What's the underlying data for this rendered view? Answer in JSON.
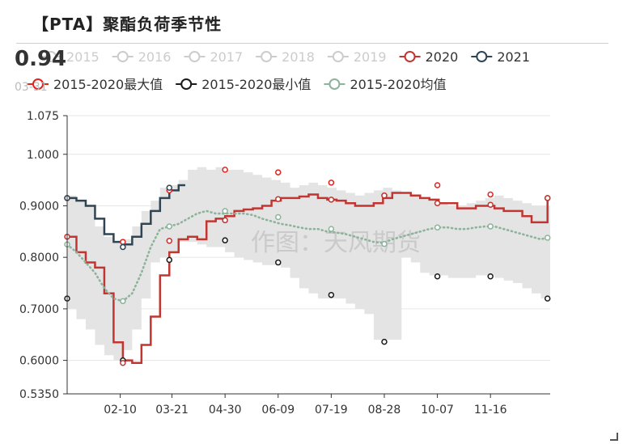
{
  "title": "【PTA】聚酯负荷季节性",
  "tooltip": {
    "value": "0.94",
    "date": "03-31"
  },
  "watermark": "作图：天风期货",
  "chart_data": {
    "type": "line",
    "title": "【PTA】聚酯负荷季节性",
    "xlabel": "",
    "ylabel": "",
    "ylim": [
      0.535,
      1.075
    ],
    "y_ticks": [
      "1.075",
      "1.000",
      "0.9000",
      "0.8000",
      "0.7000",
      "0.6000",
      "0.5350"
    ],
    "y_tick_values": [
      1.075,
      1.0,
      0.9,
      0.8,
      0.7,
      0.6,
      0.535
    ],
    "x_tick_labels": [
      "02-10",
      "03-21",
      "04-30",
      "06-09",
      "07-19",
      "08-28",
      "10-07",
      "11-16"
    ],
    "x_tick_days": [
      41,
      80,
      120,
      160,
      200,
      240,
      280,
      320
    ],
    "x_range_days": [
      1,
      365
    ],
    "grid": true,
    "legend": {
      "placement": "top",
      "items": [
        {
          "name": "2015",
          "color": "#cccccc",
          "active": false
        },
        {
          "name": "2016",
          "color": "#cccccc",
          "active": false
        },
        {
          "name": "2017",
          "color": "#cccccc",
          "active": false
        },
        {
          "name": "2018",
          "color": "#cccccc",
          "active": false
        },
        {
          "name": "2019",
          "color": "#cccccc",
          "active": false
        },
        {
          "name": "2020",
          "color": "#c23531",
          "active": true
        },
        {
          "name": "2021",
          "color": "#2f4554",
          "active": true
        },
        {
          "name": "2015-2020最大值",
          "color": "#e3231e",
          "active": true
        },
        {
          "name": "2015-2020最小值",
          "color": "#1a1a1a",
          "active": true
        },
        {
          "name": "2015-2020均值",
          "color": "#8cb39b",
          "active": true
        }
      ]
    },
    "band": {
      "days": [
        1,
        8,
        15,
        22,
        29,
        36,
        43,
        50,
        57,
        64,
        71,
        78,
        85,
        92,
        99,
        106,
        113,
        120,
        127,
        134,
        141,
        148,
        155,
        162,
        169,
        176,
        183,
        190,
        197,
        204,
        211,
        218,
        225,
        232,
        239,
        246,
        253,
        260,
        267,
        274,
        281,
        288,
        295,
        302,
        309,
        316,
        323,
        330,
        337,
        344,
        351,
        358,
        365
      ],
      "upper": [
        0.92,
        0.91,
        0.9,
        0.86,
        0.84,
        0.83,
        0.835,
        0.86,
        0.89,
        0.91,
        0.935,
        0.94,
        0.95,
        0.97,
        0.975,
        0.97,
        0.975,
        0.97,
        0.97,
        0.965,
        0.96,
        0.955,
        0.95,
        0.945,
        0.935,
        0.94,
        0.945,
        0.94,
        0.935,
        0.93,
        0.925,
        0.92,
        0.925,
        0.93,
        0.935,
        0.93,
        0.925,
        0.92,
        0.915,
        0.91,
        0.905,
        0.9,
        0.9,
        0.905,
        0.91,
        0.915,
        0.92,
        0.915,
        0.91,
        0.905,
        0.9,
        0.9,
        0.915
      ],
      "lower": [
        0.72,
        0.7,
        0.68,
        0.66,
        0.63,
        0.61,
        0.6,
        0.62,
        0.66,
        0.72,
        0.79,
        0.8,
        0.81,
        0.83,
        0.83,
        0.825,
        0.82,
        0.82,
        0.81,
        0.8,
        0.795,
        0.79,
        0.785,
        0.785,
        0.78,
        0.76,
        0.74,
        0.73,
        0.72,
        0.72,
        0.72,
        0.71,
        0.7,
        0.69,
        0.64,
        0.64,
        0.64,
        0.8,
        0.79,
        0.77,
        0.765,
        0.765,
        0.76,
        0.76,
        0.76,
        0.765,
        0.765,
        0.76,
        0.755,
        0.75,
        0.74,
        0.73,
        0.72
      ]
    },
    "series": [
      {
        "name": "2020",
        "color": "#c23531",
        "step": true,
        "days": [
          1,
          8,
          15,
          22,
          29,
          36,
          43,
          50,
          57,
          64,
          71,
          78,
          85,
          92,
          99,
          106,
          113,
          120,
          127,
          134,
          141,
          148,
          155,
          162,
          169,
          176,
          183,
          190,
          197,
          204,
          211,
          218,
          225,
          232,
          239,
          246,
          253,
          260,
          267,
          274,
          281,
          288,
          295,
          302,
          309,
          316,
          323,
          330,
          337,
          344,
          351,
          358,
          363,
          365
        ],
        "values": [
          0.84,
          0.81,
          0.79,
          0.78,
          0.73,
          0.635,
          0.6,
          0.595,
          0.63,
          0.685,
          0.765,
          0.81,
          0.835,
          0.84,
          0.835,
          0.87,
          0.875,
          0.88,
          0.89,
          0.893,
          0.895,
          0.9,
          0.91,
          0.915,
          0.915,
          0.918,
          0.922,
          0.915,
          0.912,
          0.91,
          0.905,
          0.9,
          0.9,
          0.905,
          0.915,
          0.925,
          0.925,
          0.92,
          0.915,
          0.912,
          0.905,
          0.905,
          0.895,
          0.895,
          0.9,
          0.9,
          0.895,
          0.89,
          0.89,
          0.88,
          0.868,
          0.868,
          0.915,
          0.915
        ]
      },
      {
        "name": "2021",
        "color": "#2f4554",
        "step": true,
        "days": [
          1,
          8,
          15,
          22,
          29,
          36,
          43,
          50,
          57,
          64,
          71,
          78,
          85,
          90
        ],
        "values": [
          0.915,
          0.91,
          0.9,
          0.875,
          0.845,
          0.83,
          0.825,
          0.84,
          0.865,
          0.89,
          0.915,
          0.93,
          0.94,
          0.94
        ]
      },
      {
        "name": "2015-2020均值",
        "color": "#8cb39b",
        "dotted": true,
        "days": [
          1,
          8,
          15,
          22,
          29,
          36,
          43,
          50,
          57,
          64,
          71,
          78,
          85,
          92,
          99,
          106,
          113,
          120,
          127,
          134,
          141,
          148,
          155,
          162,
          169,
          176,
          183,
          190,
          197,
          204,
          211,
          218,
          225,
          232,
          239,
          246,
          253,
          260,
          267,
          274,
          281,
          288,
          295,
          302,
          309,
          316,
          323,
          330,
          337,
          344,
          351,
          358,
          365
        ],
        "values": [
          0.825,
          0.81,
          0.79,
          0.77,
          0.74,
          0.72,
          0.715,
          0.73,
          0.77,
          0.82,
          0.855,
          0.86,
          0.865,
          0.875,
          0.885,
          0.89,
          0.885,
          0.885,
          0.885,
          0.885,
          0.882,
          0.875,
          0.87,
          0.865,
          0.862,
          0.858,
          0.855,
          0.855,
          0.85,
          0.848,
          0.845,
          0.84,
          0.835,
          0.83,
          0.828,
          0.835,
          0.84,
          0.845,
          0.85,
          0.855,
          0.858,
          0.858,
          0.855,
          0.855,
          0.858,
          0.86,
          0.86,
          0.855,
          0.85,
          0.845,
          0.84,
          0.835,
          0.84
        ]
      }
    ],
    "markers": {
      "max": {
        "color": "#e3231e",
        "days": [
          1,
          43,
          78,
          120,
          160,
          200,
          240,
          280,
          320,
          363
        ],
        "values": [
          0.915,
          0.83,
          0.93,
          0.97,
          0.965,
          0.945,
          0.92,
          0.94,
          0.922,
          0.915
        ]
      },
      "min": {
        "color": "#1a1a1a",
        "days": [
          1,
          43,
          78,
          120,
          160,
          200,
          240,
          280,
          320,
          363
        ],
        "values": [
          0.72,
          0.6,
          0.795,
          0.833,
          0.79,
          0.727,
          0.636,
          0.763,
          0.763,
          0.72
        ]
      },
      "avg": {
        "color": "#8cb39b",
        "days": [
          1,
          43,
          78,
          120,
          160,
          200,
          240,
          280,
          320,
          363
        ],
        "values": [
          0.825,
          0.715,
          0.86,
          0.89,
          0.878,
          0.855,
          0.826,
          0.858,
          0.86,
          0.838
        ]
      },
      "s2020": {
        "color": "#c23531",
        "days": [
          1,
          43,
          78,
          120,
          160,
          200,
          240,
          280,
          320,
          363
        ],
        "values": [
          0.84,
          0.595,
          0.832,
          0.872,
          0.913,
          0.912,
          0.92,
          0.905,
          0.902,
          0.915
        ]
      },
      "s2021": {
        "color": "#2f4554",
        "days": [
          1,
          43,
          78
        ],
        "values": [
          0.915,
          0.82,
          0.935
        ]
      }
    }
  }
}
